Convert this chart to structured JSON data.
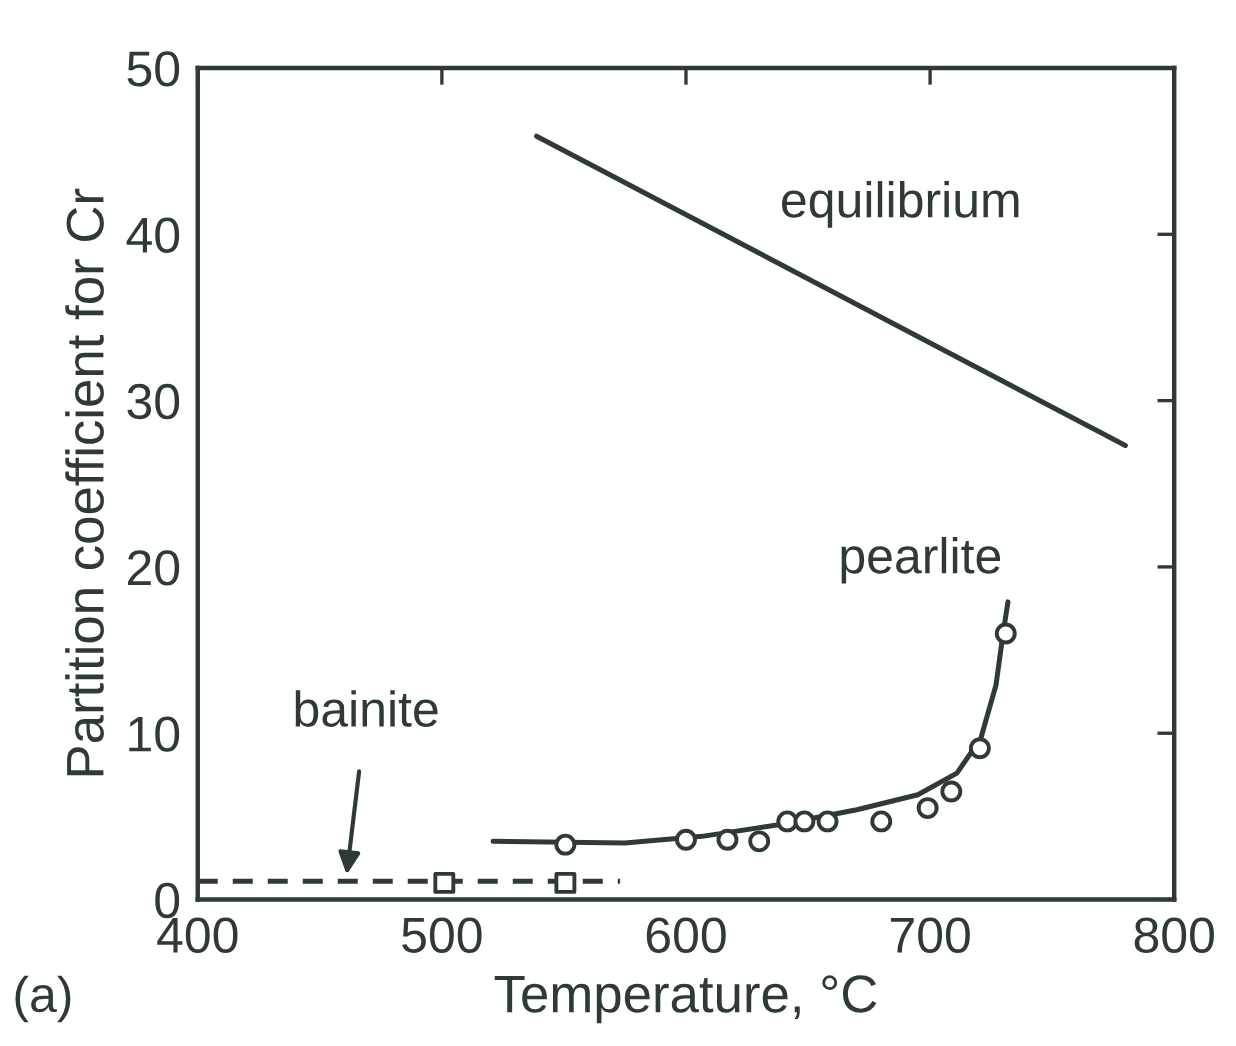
{
  "chart_data": {
    "type": "line",
    "xlabel": "Temperature, °C",
    "ylabel": "Partition coefficient for Cr",
    "xlim": [
      400,
      800
    ],
    "xticks": [
      400,
      500,
      600,
      700,
      800
    ],
    "ylim": [
      0,
      50
    ],
    "yticks": [
      0,
      10,
      20,
      30,
      40,
      50
    ],
    "grid": false,
    "legend": false,
    "series": [
      {
        "color": "#2f3a36",
        "line_style": "solid",
        "marker": "none",
        "x": [
          538.8,
          780
        ],
        "values": [
          45.9,
          27.3
        ]
      },
      {
        "color": "#2f3a36",
        "line_style": "solid",
        "marker": "none",
        "x": [
          521,
          575,
          606.6,
          638,
          670,
          695,
          711,
          720.8,
          727,
          730,
          731.9
        ],
        "values": [
          3.5,
          3.4,
          3.8,
          4.5,
          5.4,
          6.3,
          7.6,
          9.7,
          12.9,
          16.1,
          17.9
        ]
      },
      {
        "type": "scatter",
        "color": "#2f3a36",
        "marker": "circle",
        "x": [
          550.6,
          600,
          617,
          630,
          641.5,
          648.5,
          658,
          680,
          699,
          708.7,
          720.4,
          731
        ],
        "values": [
          3.3,
          3.6,
          3.6,
          3.5,
          4.7,
          4.7,
          4.7,
          4.7,
          5.5,
          6.5,
          9.1,
          16.0
        ]
      },
      {
        "color": "#2f3a36",
        "line_style": "dashed",
        "marker": "none",
        "x": [
          400,
          573
        ],
        "values": [
          1.1,
          1.1
        ]
      },
      {
        "type": "scatter",
        "color": "#2f3a36",
        "marker": "square",
        "x": [
          501,
          550.6
        ],
        "values": [
          1.0,
          1.0
        ]
      }
    ],
    "annotations": [
      "equilibrium",
      "pearlite",
      {
        "text": "bainite",
        "x": 461,
        "y": 1.5
      },
      "(a)"
    ]
  }
}
